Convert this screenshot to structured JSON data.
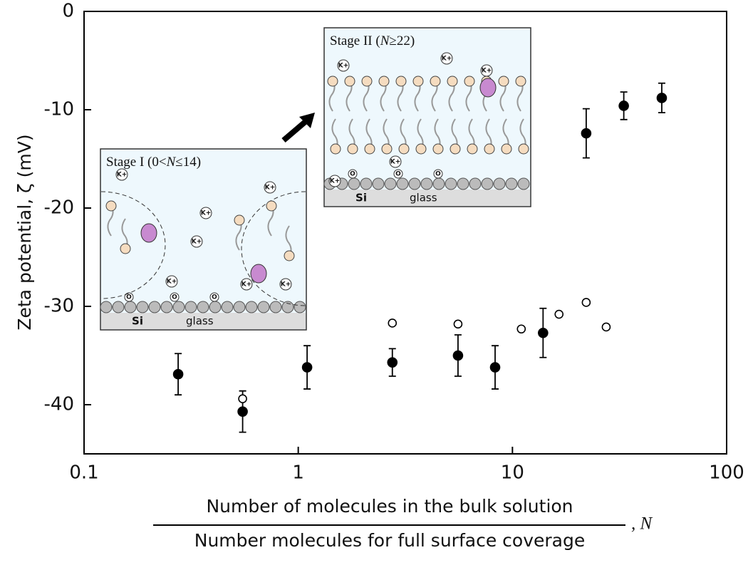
{
  "chart_data": {
    "type": "scatter",
    "x_label_numerator": "Number of molecules in the bulk solution",
    "x_label_denominator": "Number molecules for full surface coverage",
    "x_label_symbol": ", N",
    "y_label": "Zeta potential, ζ (mV)",
    "xscale": "log",
    "xlim": [
      0.1,
      100
    ],
    "xticks": [
      0.1,
      1,
      10,
      100
    ],
    "ylim": [
      -45,
      0
    ],
    "yticks": [
      0,
      -10,
      -20,
      -30,
      -40
    ],
    "series": [
      {
        "color": "#000000",
        "marker": "filled",
        "x": [
          0.275,
          0.55,
          1.1,
          2.75,
          5.57,
          8.3,
          13.9,
          22.1,
          33.1,
          49.8
        ],
        "values": [
          -36.9,
          -40.7,
          -36.2,
          -35.7,
          -35.0,
          -36.2,
          -32.7,
          -12.4,
          -9.6,
          -8.8
        ],
        "errors": [
          2.1,
          2.1,
          2.2,
          1.4,
          2.1,
          2.2,
          2.5,
          2.5,
          1.4,
          1.5
        ]
      },
      {
        "color": "#000000",
        "marker": "open",
        "x": [
          0.55,
          2.75,
          5.57,
          11.0,
          16.5,
          22.1,
          27.4
        ],
        "values": [
          -39.4,
          -31.7,
          -31.8,
          -32.3,
          -30.8,
          -29.6,
          -32.1
        ]
      }
    ],
    "insets": [
      {
        "title_parts": [
          "Stage I (0<",
          "N",
          "≤14)"
        ],
        "ion": "K+",
        "atom_o": "O",
        "atom_si": "Si",
        "substrate": "glass"
      },
      {
        "title_parts": [
          "Stage II (",
          "N",
          "≥22)"
        ],
        "ion": "K+",
        "atom_o": "O",
        "atom_si": "Si",
        "substrate": "glass"
      }
    ]
  }
}
